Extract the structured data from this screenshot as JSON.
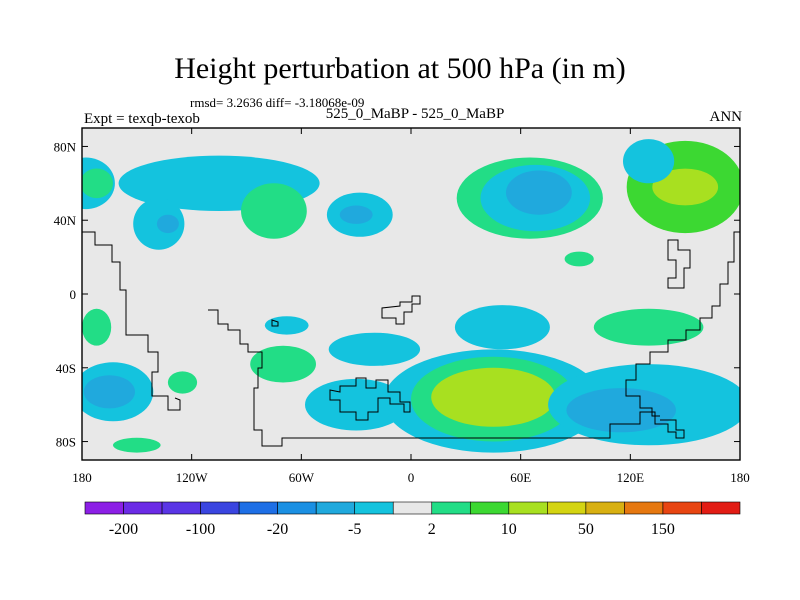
{
  "chart_data": {
    "type": "heatmap",
    "title": "Height perturbation at 500 hPa (in m)",
    "stats_line": "rmsd= 3.2636 diff= -3.18068e-09",
    "expt_label": "Expt = texqb-texob",
    "case_label": "525_0_MaBP - 525_0_MaBP",
    "season_label": "ANN",
    "x_tick_labels": [
      "180",
      "120W",
      "60W",
      "0",
      "60E",
      "120E",
      "180"
    ],
    "y_tick_labels": [
      "80N",
      "40N",
      "0",
      "40S",
      "80S"
    ],
    "lon_range": [
      -180,
      180
    ],
    "lat_range": [
      -90,
      90
    ],
    "colorbar": {
      "colors": [
        "#8c1fe6",
        "#6b2be6",
        "#5a35e6",
        "#3a45e0",
        "#1e6fe6",
        "#1b90e3",
        "#20a9dd",
        "#14c3de",
        "#e8e8e8",
        "#22dd86",
        "#3cd832",
        "#a8e020",
        "#d4d412",
        "#d8b012",
        "#e67810",
        "#e84512",
        "#e21c14"
      ],
      "labels": [
        "-200",
        "-100",
        "-20",
        "-5",
        "2",
        "10",
        "50",
        "150"
      ]
    },
    "anomalies": [
      {
        "lon": -178,
        "lat": 60,
        "rlon": 16,
        "rlat": 14,
        "value": -3
      },
      {
        "lon": -172,
        "lat": 60,
        "rlon": 9,
        "rlat": 8,
        "value": 4
      },
      {
        "lon": -105,
        "lat": 60,
        "rlon": 55,
        "rlat": 15,
        "value": -3
      },
      {
        "lon": -138,
        "lat": 38,
        "rlon": 14,
        "rlat": 14,
        "value": -3
      },
      {
        "lon": -133,
        "lat": 38,
        "rlon": 6,
        "rlat": 5,
        "value": -8
      },
      {
        "lon": -75,
        "lat": 45,
        "rlon": 18,
        "rlat": 15,
        "value": 3
      },
      {
        "lon": -28,
        "lat": 43,
        "rlon": 18,
        "rlat": 12,
        "value": -3
      },
      {
        "lon": -30,
        "lat": 43,
        "rlon": 9,
        "rlat": 5,
        "value": -8
      },
      {
        "lon": 65,
        "lat": 52,
        "rlon": 40,
        "rlat": 22,
        "value": 3
      },
      {
        "lon": 68,
        "lat": 52,
        "rlon": 30,
        "rlat": 18,
        "value": -3
      },
      {
        "lon": 70,
        "lat": 55,
        "rlon": 18,
        "rlat": 12,
        "value": -8
      },
      {
        "lon": 150,
        "lat": 58,
        "rlon": 32,
        "rlat": 25,
        "value": 5
      },
      {
        "lon": 150,
        "lat": 58,
        "rlon": 18,
        "rlat": 10,
        "value": 15
      },
      {
        "lon": 130,
        "lat": 72,
        "rlon": 14,
        "rlat": 12,
        "value": -3
      },
      {
        "lon": 92,
        "lat": 19,
        "rlon": 8,
        "rlat": 4,
        "value": 3
      },
      {
        "lon": -172,
        "lat": -18,
        "rlon": 8,
        "rlat": 10,
        "value": 3
      },
      {
        "lon": -68,
        "lat": -17,
        "rlon": 12,
        "rlat": 5,
        "value": -3
      },
      {
        "lon": 50,
        "lat": -18,
        "rlon": 26,
        "rlat": 12,
        "value": -3
      },
      {
        "lon": 130,
        "lat": -18,
        "rlon": 30,
        "rlat": 10,
        "value": 3
      },
      {
        "lon": -70,
        "lat": -38,
        "rlon": 18,
        "rlat": 10,
        "value": 3
      },
      {
        "lon": -20,
        "lat": -30,
        "rlon": 25,
        "rlat": 9,
        "value": -3
      },
      {
        "lon": -163,
        "lat": -53,
        "rlon": 22,
        "rlat": 16,
        "value": -3
      },
      {
        "lon": -165,
        "lat": -53,
        "rlon": 14,
        "rlat": 9,
        "value": -8
      },
      {
        "lon": -125,
        "lat": -48,
        "rlon": 8,
        "rlat": 6,
        "value": 3
      },
      {
        "lon": -30,
        "lat": -60,
        "rlon": 28,
        "rlat": 14,
        "value": -3
      },
      {
        "lon": 45,
        "lat": -58,
        "rlon": 60,
        "rlat": 28,
        "value": -3
      },
      {
        "lon": 45,
        "lat": -57,
        "rlon": 45,
        "rlat": 23,
        "value": 4
      },
      {
        "lon": 45,
        "lat": -56,
        "rlon": 34,
        "rlat": 16,
        "value": 15
      },
      {
        "lon": 130,
        "lat": -60,
        "rlon": 55,
        "rlat": 22,
        "value": -3
      },
      {
        "lon": 115,
        "lat": -63,
        "rlon": 30,
        "rlat": 12,
        "value": -8
      },
      {
        "lon": -150,
        "lat": -82,
        "rlon": 13,
        "rlat": 4,
        "value": 3
      }
    ]
  }
}
